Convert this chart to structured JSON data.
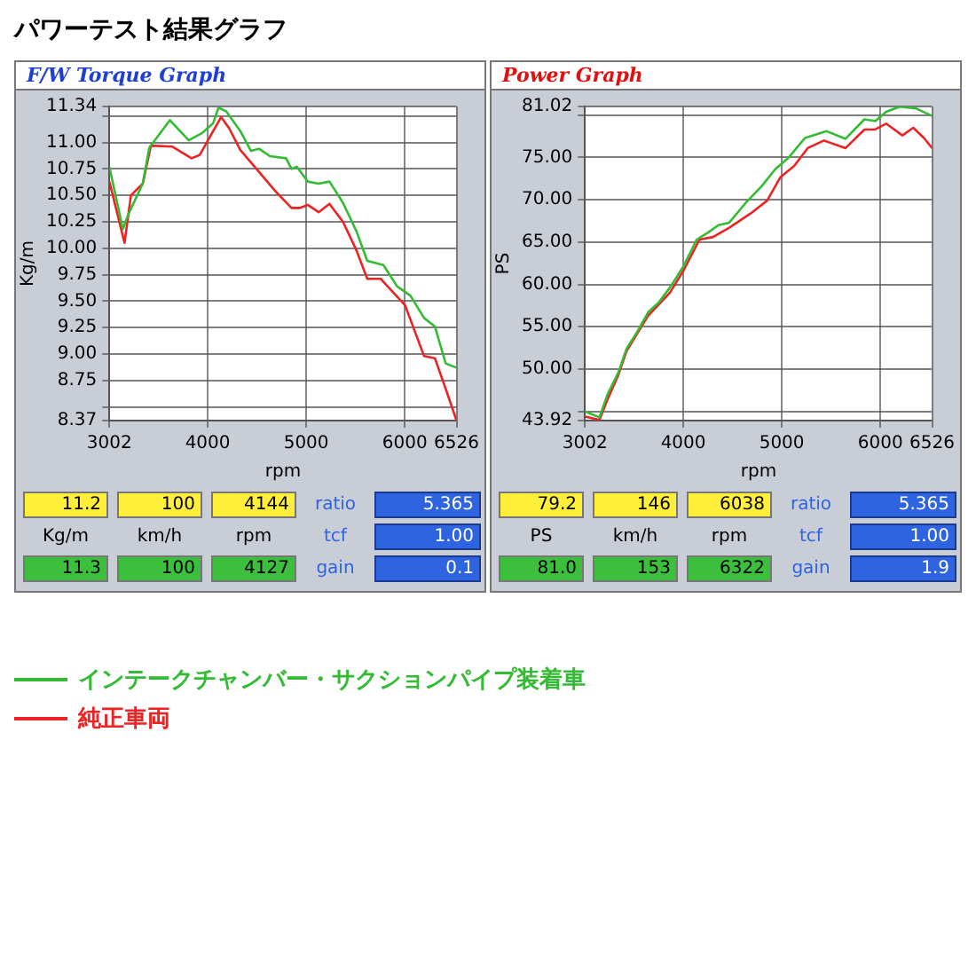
{
  "chart_data": [
    {
      "type": "line",
      "title": "パワーテスト結果グラフ",
      "subtitle": "F/W Torque Graph",
      "xlabel": "rpm",
      "ylabel": "Kg/m",
      "legend": "bottom",
      "grid": true,
      "xlim": [
        3002,
        6526
      ],
      "xticks": [
        3002,
        4000,
        5000,
        6000,
        6526
      ],
      "ylim": [
        8.37,
        11.34
      ],
      "yticks": [
        8.37,
        {
          "value": 8.5,
          "label": null
        },
        8.75,
        {
          "value": 9.0,
          "label": "9.00"
        },
        9.25,
        {
          "value": 9.5,
          "label": "9.50"
        },
        9.75,
        {
          "value": 10.0,
          "label": "10.00"
        },
        10.25,
        {
          "value": 10.5,
          "label": "10.50"
        },
        10.75,
        {
          "value": 11.0,
          "label": "11.00"
        },
        {
          "value": 11.25,
          "label": null
        },
        11.34
      ],
      "series": [
        {
          "name": "インテークチャンバー・サクションパイプ装着車",
          "color": "#33bb33",
          "x": [
            3002,
            3139,
            3194,
            3341,
            3407,
            3616,
            3808,
            3945,
            4055,
            4110,
            4192,
            4330,
            4439,
            4522,
            4632,
            4796,
            4851,
            4906,
            5016,
            5126,
            5236,
            5373,
            5510,
            5620,
            5784,
            5922,
            6059,
            6196,
            6306,
            6416,
            6526
          ],
          "values": [
            10.77,
            10.18,
            10.32,
            10.61,
            10.95,
            11.21,
            11.02,
            11.09,
            11.18,
            11.33,
            11.29,
            11.11,
            10.92,
            10.94,
            10.87,
            10.85,
            10.75,
            10.77,
            10.63,
            10.61,
            10.63,
            10.43,
            10.16,
            9.88,
            9.84,
            9.64,
            9.55,
            9.34,
            9.26,
            8.91,
            8.87
          ]
        },
        {
          "name": "純正車両",
          "color": "#ee2222",
          "x": [
            3002,
            3156,
            3221,
            3341,
            3424,
            3643,
            3836,
            3918,
            4027,
            4137,
            4220,
            4330,
            4522,
            4686,
            4851,
            4933,
            5016,
            5126,
            5236,
            5373,
            5510,
            5620,
            5757,
            5894,
            6004,
            6196,
            6306,
            6416,
            6526
          ],
          "values": [
            10.63,
            10.05,
            10.5,
            10.61,
            10.97,
            10.96,
            10.85,
            10.88,
            11.06,
            11.24,
            11.13,
            10.93,
            10.72,
            10.54,
            10.38,
            10.38,
            10.41,
            10.34,
            10.42,
            10.25,
            9.98,
            9.71,
            9.71,
            9.57,
            9.46,
            8.98,
            8.96,
            8.67,
            8.37
          ]
        }
      ],
      "annotations": [
        "11.2",
        "100",
        "4144",
        "ratio",
        "5.365",
        "Kg/m",
        "km/h",
        "rpm",
        "tcf",
        "1.00",
        "11.3",
        "100",
        "4127",
        "gain",
        "0.1"
      ]
    },
    {
      "type": "line",
      "subtitle": "Power Graph",
      "xlabel": "rpm",
      "ylabel": "PS",
      "grid": true,
      "xlim": [
        3002,
        6526
      ],
      "xticks": [
        3002,
        4000,
        5000,
        6000,
        6526
      ],
      "ylim": [
        43.92,
        81.02
      ],
      "yticks": [
        43.92,
        {
          "value": 45,
          "label": null
        },
        {
          "value": 50,
          "label": "50.00"
        },
        {
          "value": 55,
          "label": "55.00"
        },
        {
          "value": 60,
          "label": "60.00"
        },
        {
          "value": 65,
          "label": "65.00"
        },
        {
          "value": 70,
          "label": "70.00"
        },
        {
          "value": 75,
          "label": "75.00"
        },
        {
          "value": 80,
          "label": null
        },
        81.02
      ],
      "series": [
        {
          "color": "#33bb33",
          "x": [
            3002,
            3149,
            3231,
            3341,
            3424,
            3533,
            3643,
            3753,
            3863,
            4000,
            4137,
            4247,
            4357,
            4467,
            4631,
            4796,
            4933,
            5071,
            5235,
            5455,
            5647,
            5839,
            5949,
            6059,
            6196,
            6361,
            6526
          ],
          "values": [
            45.0,
            44.3,
            47.0,
            49.6,
            52.4,
            54.4,
            56.7,
            57.9,
            59.6,
            62.1,
            65.3,
            66.1,
            67.0,
            67.3,
            69.6,
            71.6,
            73.6,
            75.0,
            77.3,
            78.1,
            77.2,
            79.5,
            79.3,
            80.4,
            81.0,
            80.8,
            79.9
          ]
        },
        {
          "color": "#ee2222",
          "x": [
            3002,
            3149,
            3231,
            3341,
            3424,
            3643,
            3863,
            4000,
            4165,
            4302,
            4467,
            4686,
            4851,
            4988,
            5126,
            5263,
            5428,
            5647,
            5839,
            5949,
            6059,
            6224,
            6334,
            6443,
            6526
          ],
          "values": [
            44.4,
            44.0,
            46.4,
            49.3,
            52.1,
            56.3,
            59.0,
            61.6,
            65.3,
            65.6,
            66.7,
            68.4,
            69.9,
            72.7,
            74.0,
            76.1,
            77.0,
            76.1,
            78.3,
            78.3,
            79.0,
            77.6,
            78.5,
            77.3,
            76.1
          ]
        }
      ],
      "annotations": [
        "79.2",
        "146",
        "6038",
        "ratio",
        "5.365",
        "PS",
        "km/h",
        "rpm",
        "tcf",
        "1.00",
        "81.0",
        "153",
        "6322",
        "gain",
        "1.9"
      ]
    }
  ]
}
